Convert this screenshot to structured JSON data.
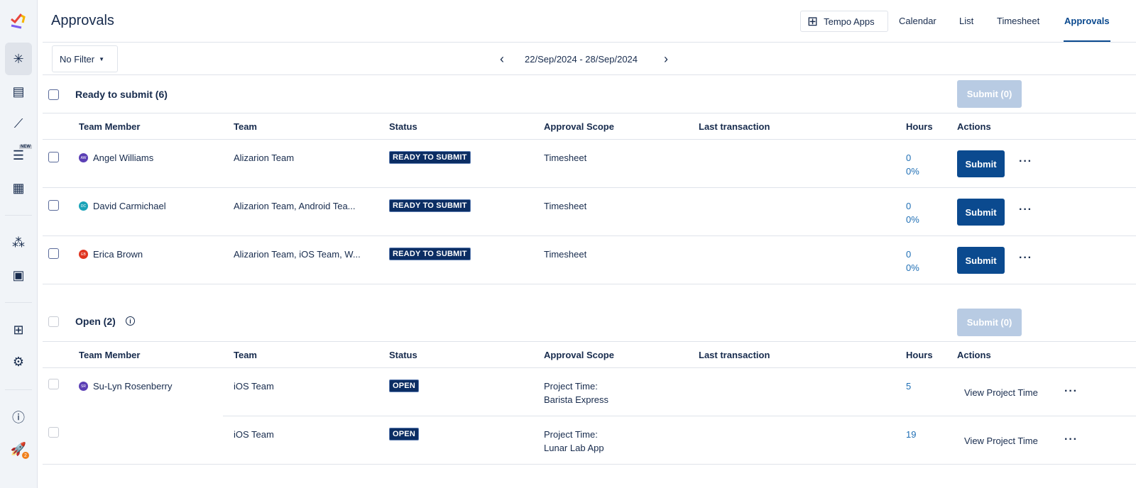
{
  "sidebar": {
    "items": [
      {
        "icon": "tempo-logo-icon"
      },
      {
        "icon": "spinner-icon",
        "active": true
      },
      {
        "icon": "document-icon"
      },
      {
        "icon": "chart-line-icon"
      },
      {
        "icon": "planner-icon",
        "badge": "NEW"
      },
      {
        "icon": "calendar-grid-icon"
      },
      {
        "icon": "team-icon"
      },
      {
        "icon": "contact-icon"
      },
      {
        "icon": "apps-icon"
      },
      {
        "icon": "gear-icon"
      },
      {
        "icon": "help-icon"
      },
      {
        "icon": "rocket-icon",
        "badge": "2"
      }
    ]
  },
  "header": {
    "title": "Approvals",
    "tempo_apps": "Tempo Apps",
    "nav": [
      "Calendar",
      "List",
      "Timesheet",
      "Approvals"
    ],
    "active_nav": "Approvals"
  },
  "toolbar": {
    "filter": "No Filter",
    "date_range": "22/Sep/2024 - 28/Sep/2024"
  },
  "columns": [
    "Team Member",
    "Team",
    "Status",
    "Approval Scope",
    "Last transaction",
    "Hours",
    "Actions"
  ],
  "ready": {
    "title": "Ready to submit (6)",
    "submit_all": "Submit (0)",
    "rows": [
      {
        "initials": "AW",
        "avatar_color": "#5b3fb5",
        "name": "Angel Williams",
        "team": "Alizarion Team",
        "status": "READY TO SUBMIT",
        "scope": "Timesheet",
        "hours": "0",
        "percent": "0%",
        "action": "Submit"
      },
      {
        "initials": "DC",
        "avatar_color": "#1aa3b8",
        "name": "David Carmichael",
        "team": "Alizarion Team, Android Tea...",
        "status": "READY TO SUBMIT",
        "scope": "Timesheet",
        "hours": "0",
        "percent": "0%",
        "action": "Submit"
      },
      {
        "initials": "EB",
        "avatar_color": "#e0341f",
        "name": "Erica Brown",
        "team": "Alizarion Team, iOS Team, W...",
        "status": "READY TO SUBMIT",
        "scope": "Timesheet",
        "hours": "0",
        "percent": "0%",
        "action": "Submit"
      }
    ]
  },
  "open": {
    "title": "Open (2)",
    "submit_all": "Submit (0)",
    "rows": [
      {
        "initials": "SR",
        "avatar_color": "#5b3fb5",
        "name": "Su-Lyn Rosenberry",
        "team": "iOS Team",
        "status": "OPEN",
        "scope1": "Project Time:",
        "scope2": "Barista Express",
        "hours": "5",
        "action": "View Project Time"
      },
      {
        "team": "iOS Team",
        "status": "OPEN",
        "scope1": "Project Time:",
        "scope2": "Lunar Lab App",
        "hours": "19",
        "action": "View Project Time"
      }
    ]
  },
  "colors": {
    "primary": "#0b4a8f",
    "badge": "#0b2d63",
    "link": "#1f6fb5",
    "disabled": "#b8cbe3"
  }
}
